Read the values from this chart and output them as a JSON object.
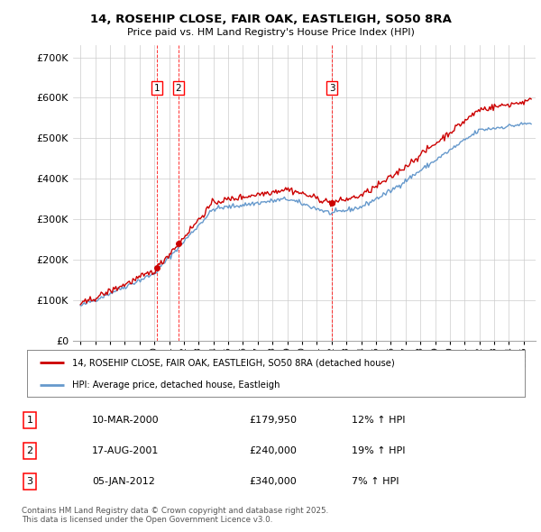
{
  "title": "14, ROSEHIP CLOSE, FAIR OAK, EASTLEIGH, SO50 8RA",
  "subtitle": "Price paid vs. HM Land Registry's House Price Index (HPI)",
  "background_color": "#ffffff",
  "grid_color": "#cccccc",
  "line1_color": "#cc0000",
  "line2_color": "#6699cc",
  "transactions": [
    {
      "label": "1",
      "date_num": 2000.19,
      "price": 179950
    },
    {
      "label": "2",
      "date_num": 2001.63,
      "price": 240000
    },
    {
      "label": "3",
      "date_num": 2012.02,
      "price": 340000
    }
  ],
  "legend_line1": "14, ROSEHIP CLOSE, FAIR OAK, EASTLEIGH, SO50 8RA (detached house)",
  "legend_line2": "HPI: Average price, detached house, Eastleigh",
  "table_rows": [
    {
      "num": "1",
      "date": "10-MAR-2000",
      "price": "£179,950",
      "note": "12% ↑ HPI"
    },
    {
      "num": "2",
      "date": "17-AUG-2001",
      "price": "£240,000",
      "note": "19% ↑ HPI"
    },
    {
      "num": "3",
      "date": "05-JAN-2012",
      "price": "£340,000",
      "note": "7% ↑ HPI"
    }
  ],
  "footnote": "Contains HM Land Registry data © Crown copyright and database right 2025.\nThis data is licensed under the Open Government Licence v3.0.",
  "ylim": [
    0,
    730000
  ],
  "yticks": [
    0,
    100000,
    200000,
    300000,
    400000,
    500000,
    600000,
    700000
  ],
  "xlim_start": 1994.5,
  "xlim_end": 2025.8
}
